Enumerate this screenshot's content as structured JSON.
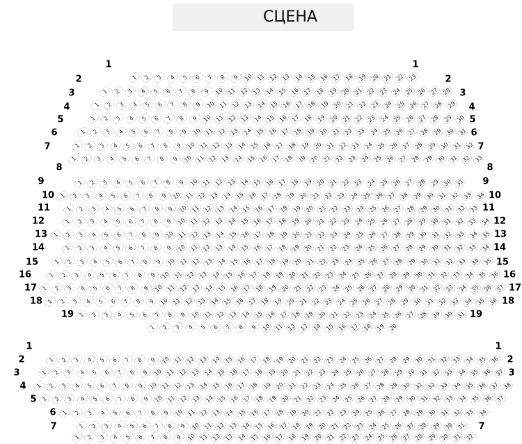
{
  "stage": {
    "label": "СЦЕНА",
    "background": "#f0f0f0"
  },
  "sections": [
    {
      "rows": [
        {
          "label": "1",
          "seats": 23
        },
        {
          "label": "2",
          "seats": 28
        },
        {
          "label": "3",
          "seats": 29
        },
        {
          "label": "4",
          "seats": 30
        },
        {
          "label": "5",
          "seats": 31
        },
        {
          "label": "6",
          "seats": 32
        },
        {
          "label": "7",
          "seats": 33
        },
        {
          "label": "8",
          "seats": 31
        },
        {
          "label": "9",
          "seats": 34
        },
        {
          "label": "10",
          "seats": 33
        },
        {
          "label": "11",
          "seats": 34
        },
        {
          "label": "12",
          "seats": 35
        },
        {
          "label": "13",
          "seats": 34
        },
        {
          "label": "14",
          "seats": 35
        },
        {
          "label": "15",
          "seats": 36
        },
        {
          "label": "16",
          "seats": 37
        },
        {
          "label": "17",
          "seats": 36
        },
        {
          "label": "18",
          "seats": 31
        },
        {
          "label": "19",
          "seats": 20
        }
      ]
    },
    {
      "rows": [
        {
          "label": "1",
          "seats": 36
        },
        {
          "label": "2",
          "seats": 37
        },
        {
          "label": "3",
          "seats": 38
        },
        {
          "label": "4",
          "seats": 37
        },
        {
          "label": "5",
          "seats": 34
        },
        {
          "label": "6",
          "seats": 31
        },
        {
          "label": "7",
          "seats": 32
        }
      ]
    }
  ]
}
